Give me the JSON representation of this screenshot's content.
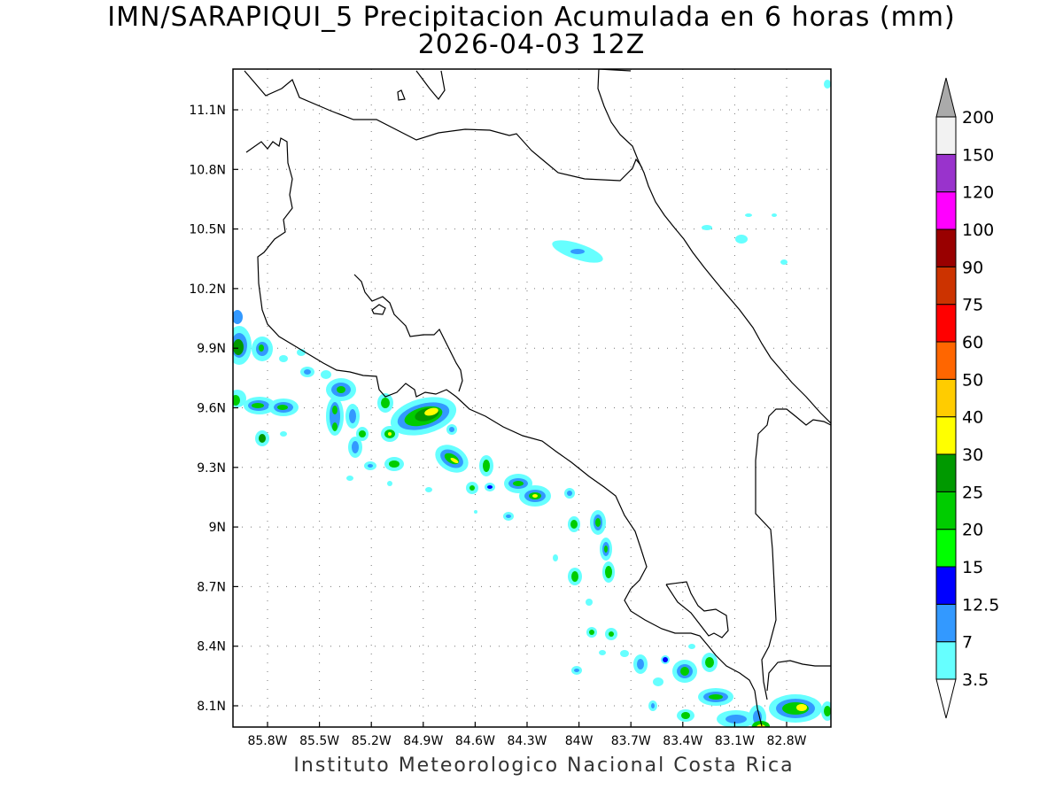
{
  "title_line1": "IMN/SARAPIQUI_5 Precipitacion Acumulada en 6 horas (mm)",
  "title_line2": "2026-04-03 12Z",
  "footer": "Instituto Meteorologico Nacional Costa Rica",
  "map": {
    "region": "Costa Rica",
    "lon_range": [
      -86.0,
      -82.6
    ],
    "lat_range": [
      8.0,
      11.3
    ],
    "grid": "dotted",
    "lat_ticks": [
      "11.1N",
      "10.8N",
      "10.5N",
      "10.2N",
      "9.9N",
      "9.6N",
      "9.3N",
      "9N",
      "8.7N",
      "8.4N",
      "8.1N"
    ],
    "lon_ticks": [
      "85.8W",
      "85.5W",
      "85.2W",
      "84.9W",
      "84.6W",
      "84.3W",
      "84W",
      "83.7W",
      "83.4W",
      "83.1W",
      "82.8W"
    ]
  },
  "legend": {
    "position": "right",
    "levels": [
      "3.5",
      "7",
      "12.5",
      "15",
      "20",
      "25",
      "30",
      "40",
      "50",
      "60",
      "75",
      "90",
      "100",
      "120",
      "150",
      "200"
    ],
    "colors": [
      "#66ffff",
      "#3399ff",
      "#0000ff",
      "#00ff00",
      "#00cc00",
      "#009900",
      "#ffff00",
      "#ffcc00",
      "#ff6600",
      "#ff0000",
      "#cc3300",
      "#990000",
      "#ff00ff",
      "#9933cc",
      "#f2f2f2"
    ],
    "top_arrow_color": "#aaaaaa",
    "bottom_arrow_color": "#ffffff"
  }
}
